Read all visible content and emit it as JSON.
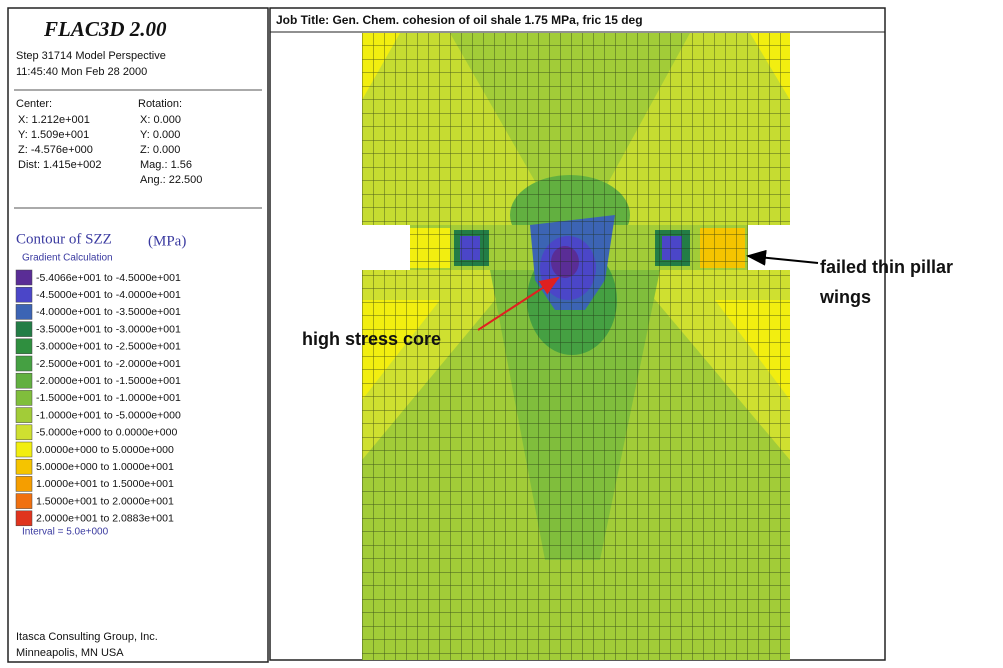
{
  "header": {
    "title": "FLAC3D 2.00",
    "step": "Step 31714  Model Perspective",
    "time": "11:45:40 Mon Feb 28 2000"
  },
  "view": {
    "center": {
      "label": "Center:",
      "lines": [
        "X: 1.212e+001",
        "Y: 1.509e+001",
        "Z: -4.576e+000",
        "Dist: 1.415e+002"
      ]
    },
    "rotation": {
      "label": "Rotation:",
      "lines": [
        "X:  0.000",
        "Y:  0.000",
        "Z:  0.000",
        "Mag.:   1.56",
        "Ang.: 22.500"
      ]
    }
  },
  "legend": {
    "title": "Contour of SZZ",
    "unit": "(MPa)",
    "method": "Gradient Calculation",
    "entries": [
      {
        "label": "-5.4066e+001 to -4.5000e+001",
        "color": "#5a2d96"
      },
      {
        "label": "-4.5000e+001 to -4.0000e+001",
        "color": "#4b46c8"
      },
      {
        "label": "-4.0000e+001 to -3.5000e+001",
        "color": "#3c64b4"
      },
      {
        "label": "-3.5000e+001 to -3.0000e+001",
        "color": "#237d46"
      },
      {
        "label": "-3.0000e+001 to -2.5000e+001",
        "color": "#2f8f3f"
      },
      {
        "label": "-2.5000e+001 to -2.0000e+001",
        "color": "#45a042"
      },
      {
        "label": "-2.0000e+001 to -1.5000e+001",
        "color": "#62b040"
      },
      {
        "label": "-1.5000e+001 to -1.0000e+001",
        "color": "#80be3c"
      },
      {
        "label": "-1.0000e+001 to -5.0000e+000",
        "color": "#a2cc38"
      },
      {
        "label": "-5.0000e+000 to  0.0000e+000",
        "color": "#cfe030"
      },
      {
        "label": "0.0000e+000 to  5.0000e+000",
        "color": "#f2ee10"
      },
      {
        "label": "5.0000e+000 to  1.0000e+001",
        "color": "#f5c400"
      },
      {
        "label": "1.0000e+001 to  1.5000e+001",
        "color": "#f59e00"
      },
      {
        "label": "1.5000e+001 to  2.0000e+001",
        "color": "#f07010"
      },
      {
        "label": "2.0000e+001 to  2.0883e+001",
        "color": "#e0341e"
      }
    ],
    "interval": "Interval =  5.0e+000"
  },
  "footer": [
    "Itasca Consulting Group, Inc.",
    "Minneapolis, MN  USA"
  ],
  "plot": {
    "job_title": "Job Title:  Gen. Chem. cohesion of oil shale 1.75 MPa, fric 15 deg",
    "annotations": [
      {
        "lines": [
          "failed thin pillar",
          "wings"
        ]
      },
      {
        "lines": [
          "high stress core"
        ]
      }
    ]
  }
}
